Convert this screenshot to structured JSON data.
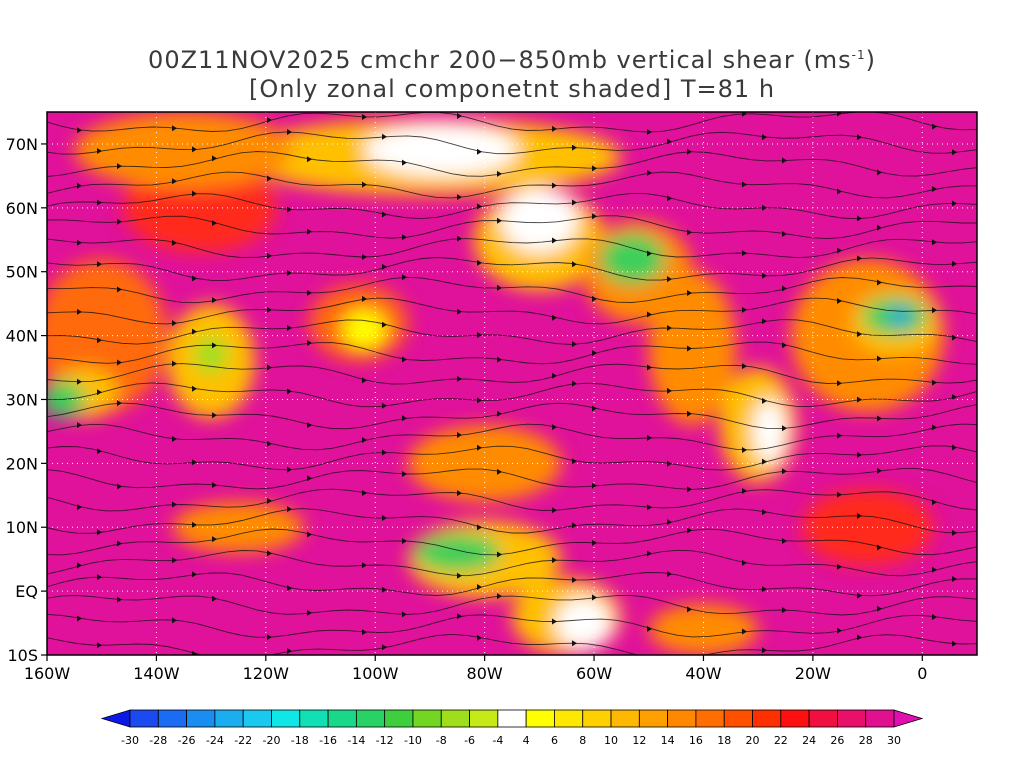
{
  "title": {
    "line1_prefix": "00Z11NOV2025 cmchr 200−850mb vertical shear (ms",
    "line1_sup": "-1",
    "line1_suffix": ")",
    "line2": "[Only zonal componetnt shaded] T=81 h"
  },
  "map": {
    "lon_range": [
      -160,
      10
    ],
    "lat_range": [
      -10,
      75
    ],
    "lat_ticks": [
      {
        "label": "70N",
        "lat": 70
      },
      {
        "label": "60N",
        "lat": 60
      },
      {
        "label": "50N",
        "lat": 50
      },
      {
        "label": "40N",
        "lat": 40
      },
      {
        "label": "30N",
        "lat": 30
      },
      {
        "label": "20N",
        "lat": 20
      },
      {
        "label": "10N",
        "lat": 10
      },
      {
        "label": "EQ",
        "lat": 0
      },
      {
        "label": "10S",
        "lat": -10
      }
    ],
    "lon_ticks": [
      {
        "label": "160W",
        "lon": -160
      },
      {
        "label": "140W",
        "lon": -140
      },
      {
        "label": "120W",
        "lon": -120
      },
      {
        "label": "100W",
        "lon": -100
      },
      {
        "label": "80W",
        "lon": -80
      },
      {
        "label": "60W",
        "lon": -60
      },
      {
        "label": "40W",
        "lon": -40
      },
      {
        "label": "20W",
        "lon": -20
      },
      {
        "label": "0",
        "lon": 0
      }
    ],
    "background_color": "#e0119a",
    "shear_regions": [
      {
        "color": "#ff2a1a",
        "lon": -132,
        "lat": 60,
        "rlon": 14,
        "rlat": 7
      },
      {
        "color": "#ff6a0a",
        "lon": -150,
        "lat": 40,
        "rlon": 12,
        "rlat": 12
      },
      {
        "color": "#ffc000",
        "lon": -130,
        "lat": 36,
        "rlon": 8,
        "rlat": 9
      },
      {
        "color": "#9de020",
        "lon": -130,
        "lat": 37,
        "rlon": 3,
        "rlat": 3
      },
      {
        "color": "#ffc000",
        "lon": -153,
        "lat": 31,
        "rlon": 6,
        "rlat": 4
      },
      {
        "color": "#3ecf5a",
        "lon": -157,
        "lat": 30,
        "rlon": 4,
        "rlat": 3
      },
      {
        "color": "#ff6a0a",
        "lon": -103,
        "lat": 42,
        "rlon": 9,
        "rlat": 6
      },
      {
        "color": "#ffff00",
        "lon": -102,
        "lat": 41,
        "rlon": 4,
        "rlat": 3
      },
      {
        "color": "#ffc000",
        "lon": -90,
        "lat": 68,
        "rlon": 35,
        "rlat": 6
      },
      {
        "color": "#ffffff",
        "lon": -88,
        "lat": 69,
        "rlon": 14,
        "rlat": 4
      },
      {
        "color": "#ff8c00",
        "lon": -135,
        "lat": 69,
        "rlon": 20,
        "rlat": 6
      },
      {
        "color": "#ffc000",
        "lon": -70,
        "lat": 55,
        "rlon": 12,
        "rlat": 8
      },
      {
        "color": "#ffffff",
        "lon": -70,
        "lat": 58,
        "rlon": 7,
        "rlat": 5
      },
      {
        "color": "#ff8c00",
        "lon": -52,
        "lat": 50,
        "rlon": 10,
        "rlat": 8
      },
      {
        "color": "#3ecf5a",
        "lon": -53,
        "lat": 52,
        "rlon": 6,
        "rlat": 4
      },
      {
        "color": "#ff8c00",
        "lon": -42,
        "lat": 38,
        "rlon": 8,
        "rlat": 12
      },
      {
        "color": "#ff8c00",
        "lon": -10,
        "lat": 40,
        "rlon": 14,
        "rlat": 12
      },
      {
        "color": "#ffc000",
        "lon": -5,
        "lat": 42,
        "rlon": 8,
        "rlat": 5
      },
      {
        "color": "#3ecf5a",
        "lon": -5,
        "lat": 43,
        "rlon": 6,
        "rlat": 3
      },
      {
        "color": "#1a9ee8",
        "lon": -4,
        "lat": 43,
        "rlon": 2,
        "rlat": 1.5
      },
      {
        "color": "#ffc000",
        "lon": -30,
        "lat": 26,
        "rlon": 7,
        "rlat": 9
      },
      {
        "color": "#ffffff",
        "lon": -28,
        "lat": 25,
        "rlon": 3,
        "rlat": 5
      },
      {
        "color": "#ff8c00",
        "lon": -80,
        "lat": 20,
        "rlon": 14,
        "rlat": 6
      },
      {
        "color": "#ffc000",
        "lon": -80,
        "lat": 5,
        "rlon": 14,
        "rlat": 6
      },
      {
        "color": "#3ecf5a",
        "lon": -85,
        "lat": 6,
        "rlon": 8,
        "rlat": 3
      },
      {
        "color": "#ffc000",
        "lon": -65,
        "lat": -4,
        "rlon": 10,
        "rlat": 6
      },
      {
        "color": "#ffffff",
        "lon": -62,
        "lat": -5,
        "rlon": 5,
        "rlat": 4
      },
      {
        "color": "#ff8c00",
        "lon": -125,
        "lat": 10,
        "rlon": 12,
        "rlat": 4
      },
      {
        "color": "#ff2a1a",
        "lon": -10,
        "lat": 10,
        "rlon": 12,
        "rlat": 6
      },
      {
        "color": "#ff8c00",
        "lon": -40,
        "lat": -6,
        "rlon": 10,
        "rlat": 4
      }
    ]
  },
  "colorbar": {
    "colors": [
      "#0a18e8",
      "#1a4af0",
      "#1a6cf2",
      "#1a8ef0",
      "#1aaef0",
      "#1ac8f0",
      "#10e6e6",
      "#10e0b4",
      "#1ad88a",
      "#28d264",
      "#3ecf3e",
      "#72d622",
      "#9ede1a",
      "#c6ea18",
      "#ffffff",
      "#ffff00",
      "#ffe800",
      "#ffd000",
      "#ffb800",
      "#ffa000",
      "#ff8800",
      "#ff6e00",
      "#ff5000",
      "#ff3000",
      "#ff1010",
      "#f01040",
      "#e8106a",
      "#e01090",
      "#e010b0"
    ],
    "labels": [
      "-30",
      "-28",
      "-26",
      "-24",
      "-22",
      "-20",
      "-18",
      "-16",
      "-14",
      "-12",
      "-10",
      "-8",
      "-6",
      "-4",
      "4",
      "6",
      "8",
      "10",
      "12",
      "14",
      "16",
      "18",
      "20",
      "22",
      "24",
      "26",
      "28",
      "30"
    ]
  }
}
